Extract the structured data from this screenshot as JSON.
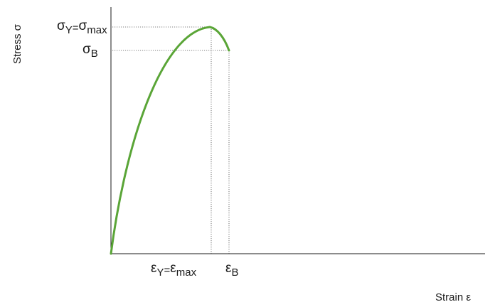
{
  "axes": {
    "x_title": "Strain ε",
    "y_title": "Stress σ"
  },
  "y_markers": {
    "yield_max": {
      "sym1": "σ",
      "sub1": "Y",
      "eq": "=",
      "sym2": "σ",
      "sub2": "max"
    },
    "break": {
      "sym": "σ",
      "sub": "B"
    }
  },
  "x_markers": {
    "yield_max": {
      "sym1": "ε",
      "sub1": "Y",
      "eq": "=",
      "sym2": "ε",
      "sub2": "max"
    },
    "break": {
      "sym": "ε",
      "sub": "B"
    }
  },
  "colors": {
    "curve": "#5aa537",
    "axis": "#1a1a1a",
    "guide": "#555555"
  }
}
